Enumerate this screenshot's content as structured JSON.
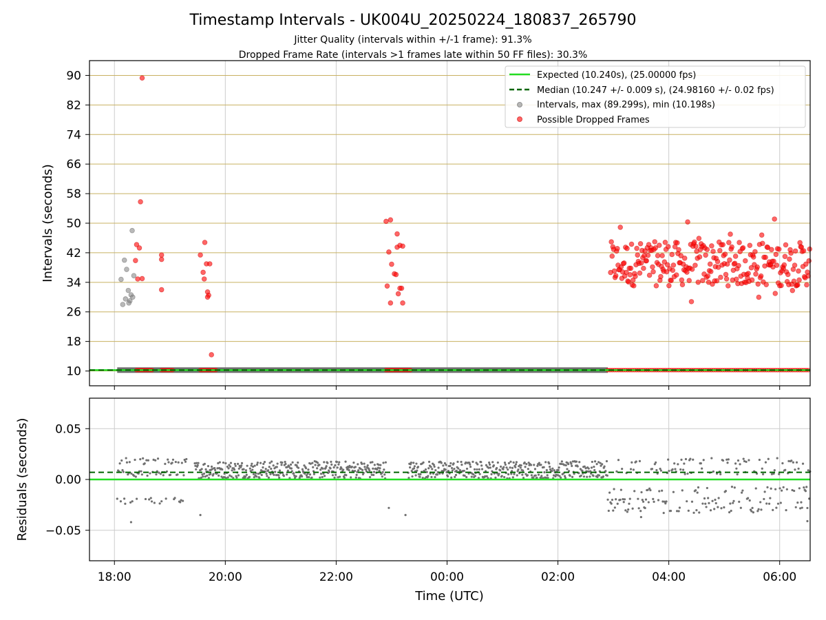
{
  "title": "Timestamp Intervals - UK004U_20250224_180837_265790",
  "subtitle_1": "Jitter Quality (intervals within +/-1 frame): 91.3%",
  "subtitle_2": "Dropped Frame Rate (intervals >1 frames late within 50 FF files): 30.3%",
  "colors": {
    "expected": "#22dd22",
    "median": "#006400",
    "intervals": "#808080",
    "dropped": "#ff0000",
    "hgrid_top": "#c8b060",
    "grid": "#cccccc"
  },
  "chart_data": [
    {
      "type": "scatter",
      "ylabel": "Intervals (seconds)",
      "xlabel": "",
      "x_unit": "hours since 18:00 UTC (day 1)",
      "xlim": [
        -0.45,
        12.55
      ],
      "ylim": [
        6,
        94
      ],
      "yticks": [
        "10",
        "18",
        "26",
        "34",
        "42",
        "50",
        "58",
        "66",
        "74",
        "82",
        "90"
      ],
      "grid": true,
      "legend_position": "top-right",
      "legend": [
        "Expected (10.240s), (25.00000 fps)",
        "Median (10.247 +/- 0.009 s), (24.98160 +/- 0.02 fps)",
        "Intervals, max (89.299s), min (10.198s)",
        "Possible Dropped Frames"
      ],
      "expected_value": 10.24,
      "median_value": 10.247,
      "series": [
        {
          "name": "Intervals, max (89.299s), min (10.198s)",
          "points": [
            [
              0.15,
              28.0
            ],
            [
              0.2,
              29.5
            ],
            [
              0.22,
              37.5
            ],
            [
              0.25,
              31.8
            ],
            [
              0.28,
              29.0
            ],
            [
              0.3,
              30.6
            ],
            [
              0.32,
              48.0
            ],
            [
              0.35,
              35.8
            ],
            [
              0.12,
              34.8
            ],
            [
              0.18,
              40.0
            ],
            [
              0.26,
              28.4
            ],
            [
              0.33,
              30.0
            ]
          ],
          "baseline": {
            "from": 0.05,
            "to": 8.9,
            "value": 10.24
          }
        },
        {
          "name": "Possible Dropped Frames",
          "points": [
            [
              0.5,
              89.3
            ],
            [
              0.47,
              55.8
            ],
            [
              0.4,
              44.2
            ],
            [
              0.42,
              34.9
            ],
            [
              0.45,
              43.3
            ],
            [
              0.38,
              39.9
            ],
            [
              0.5,
              35.0
            ],
            [
              0.85,
              40.2
            ],
            [
              0.85,
              41.4
            ],
            [
              0.85,
              32.0
            ],
            [
              1.55,
              41.4
            ],
            [
              1.6,
              36.7
            ],
            [
              1.62,
              34.9
            ],
            [
              1.63,
              44.8
            ],
            [
              1.66,
              39.0
            ],
            [
              1.68,
              31.4
            ],
            [
              1.7,
              30.5
            ],
            [
              1.72,
              39.0
            ],
            [
              1.68,
              30.0
            ],
            [
              1.75,
              14.4
            ],
            [
              4.9,
              50.5
            ],
            [
              4.98,
              50.9
            ],
            [
              4.95,
              42.2
            ],
            [
              5.0,
              38.9
            ],
            [
              5.05,
              36.3
            ],
            [
              5.08,
              36.1
            ],
            [
              5.1,
              47.1
            ],
            [
              5.1,
              43.5
            ],
            [
              5.15,
              44.0
            ],
            [
              5.2,
              43.8
            ],
            [
              5.15,
              32.4
            ],
            [
              5.18,
              32.4
            ],
            [
              5.12,
              30.9
            ],
            [
              5.2,
              28.4
            ],
            [
              4.98,
              28.4
            ],
            [
              4.92,
              33.0
            ]
          ],
          "dropped_baseline_segments": [
            [
              0.4,
              0.7
            ],
            [
              0.85,
              1.05
            ],
            [
              1.55,
              1.85
            ],
            [
              4.9,
              5.35
            ],
            [
              8.9,
              12.55
            ]
          ],
          "dense_region": {
            "from": 8.95,
            "to": 12.55,
            "ymin": 28.0,
            "ymax": 52.0,
            "typical_min": 33.0,
            "typical_max": 45.0
          }
        }
      ]
    },
    {
      "type": "scatter",
      "ylabel": "Residuals (seconds)",
      "xlabel": "Time (UTC)",
      "xlim": [
        -0.45,
        12.55
      ],
      "ylim": [
        -0.08,
        0.08
      ],
      "yticks": [
        "0.05",
        "0.00",
        "−0.05"
      ],
      "xticks": [
        "18:00",
        "20:00",
        "22:00",
        "00:00",
        "02:00",
        "04:00",
        "06:00"
      ],
      "grid": true,
      "expected_residual": 0.0,
      "median_residual": 0.007,
      "series": [
        {
          "name": "Residuals",
          "regions": [
            {
              "from": 0.05,
              "to": 1.3,
              "levels": [
                0.007,
                0.005,
                -0.021,
                0.018
              ]
            },
            {
              "from": 1.45,
              "to": 4.9,
              "band": [
                0.001,
                0.018
              ]
            },
            {
              "from": 5.3,
              "to": 8.9,
              "band": [
                0.001,
                0.018
              ]
            },
            {
              "from": 8.9,
              "to": 12.55,
              "levels": [
                0.018,
                0.008,
                -0.01,
                -0.021,
                -0.03
              ]
            }
          ],
          "outliers": [
            [
              0.3,
              -0.042
            ],
            [
              1.55,
              -0.035
            ],
            [
              4.95,
              -0.028
            ],
            [
              5.25,
              -0.035
            ],
            [
              12.5,
              -0.041
            ],
            [
              9.5,
              -0.037
            ]
          ]
        }
      ]
    }
  ]
}
